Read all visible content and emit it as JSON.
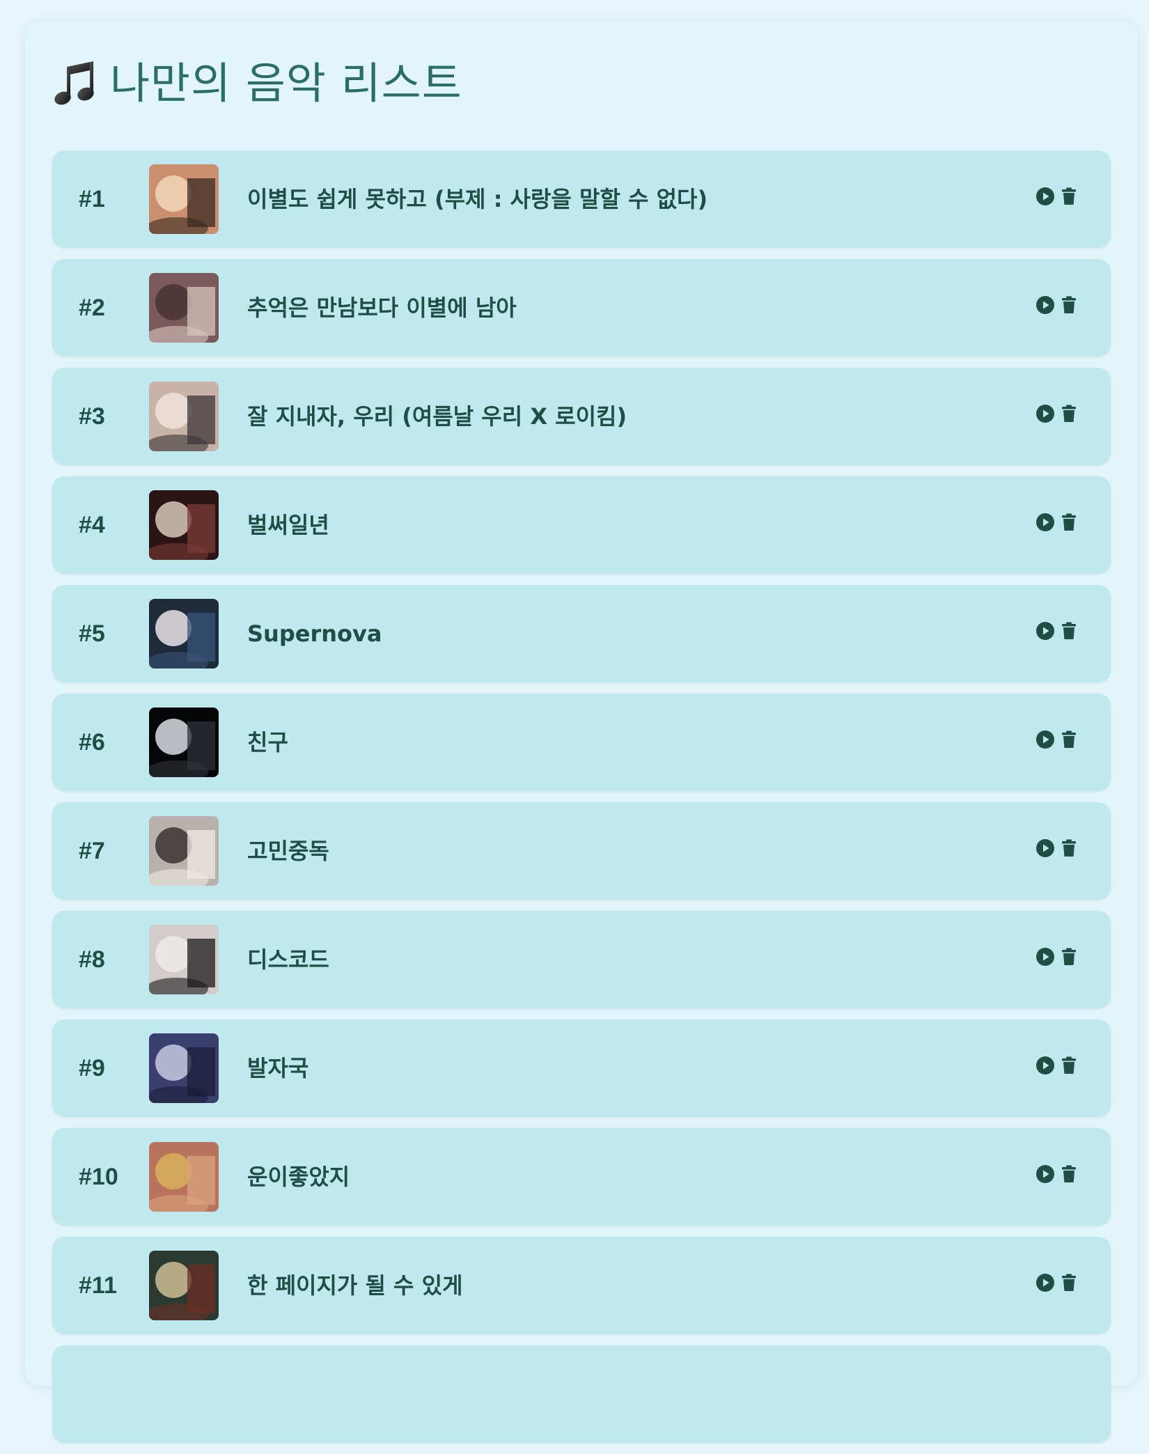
{
  "page": {
    "title": "나만의 음악 리스트",
    "title_icon": "music-note-icon"
  },
  "colors": {
    "background": "#e5f5fa",
    "row": "#bfe8ef",
    "title": "#2b6f63",
    "text": "#1f4f44"
  },
  "songs": [
    {
      "rank": "#1",
      "title": "이별도 쉽게 못하고 (부제 : 사랑을 말할 수 없다)",
      "thumb": [
        "#c98f6e",
        "#3a2a22",
        "#f3d6b8"
      ]
    },
    {
      "rank": "#2",
      "title": "추억은 만남보다 이별에 남아",
      "thumb": [
        "#7a5a5a",
        "#d9c4c0",
        "#4a3436"
      ]
    },
    {
      "rank": "#3",
      "title": "잘 지내자, 우리 (여름날 우리 X 로이킴)",
      "thumb": [
        "#c9b2a6",
        "#3b3538",
        "#efe2dc"
      ]
    },
    {
      "rank": "#4",
      "title": "벌써일년",
      "thumb": [
        "#2c1416",
        "#7b3b36",
        "#d7c8b9"
      ]
    },
    {
      "rank": "#5",
      "title": "Supernova",
      "thumb": [
        "#1c2a3a",
        "#39557a",
        "#e9e4e6"
      ]
    },
    {
      "rank": "#6",
      "title": "친구",
      "thumb": [
        "#050608",
        "#2e3238",
        "#d9dde2"
      ]
    },
    {
      "rank": "#7",
      "title": "고민중독",
      "thumb": [
        "#b9b1ab",
        "#efe9e6",
        "#3b3433"
      ]
    },
    {
      "rank": "#8",
      "title": "디스코드",
      "thumb": [
        "#d3cccc",
        "#1b1b1c",
        "#eeeaea"
      ]
    },
    {
      "rank": "#9",
      "title": "발자국",
      "thumb": [
        "#3a3f6e",
        "#1b1d36",
        "#c9c9e0"
      ]
    },
    {
      "rank": "#10",
      "title": "운이좋았지",
      "thumb": [
        "#b9745e",
        "#d9a37f",
        "#d8b05c"
      ]
    },
    {
      "rank": "#11",
      "title": "한 페이지가 될 수 있게",
      "thumb": [
        "#2a3a30",
        "#6b2e25",
        "#cdbf95"
      ]
    },
    {
      "rank": "",
      "title": "",
      "thumb": [
        "#bfe8ef",
        "#bfe8ef",
        "#bfe8ef"
      ]
    }
  ]
}
